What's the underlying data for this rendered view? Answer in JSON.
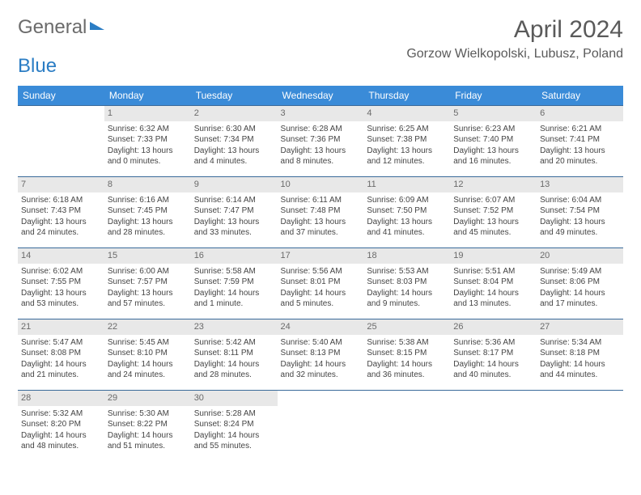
{
  "logo": {
    "general": "General",
    "blue": "Blue"
  },
  "title": "April 2024",
  "location": "Gorzow Wielkopolski, Lubusz, Poland",
  "colors": {
    "header_bg": "#3a8bd8",
    "header_text": "#ffffff",
    "border": "#3a6a9a",
    "daynum_bg": "#e8e8e8",
    "daynum_text": "#6a6a6a",
    "body_text": "#444444",
    "title_text": "#5a5a5a",
    "logo_gray": "#6b6b6b",
    "logo_blue": "#2b7dc4",
    "background": "#ffffff"
  },
  "weekdays": [
    "Sunday",
    "Monday",
    "Tuesday",
    "Wednesday",
    "Thursday",
    "Friday",
    "Saturday"
  ],
  "weeks": [
    [
      {
        "day": "",
        "sunrise": "",
        "sunset": "",
        "daylight1": "",
        "daylight2": ""
      },
      {
        "day": "1",
        "sunrise": "Sunrise: 6:32 AM",
        "sunset": "Sunset: 7:33 PM",
        "daylight1": "Daylight: 13 hours",
        "daylight2": "and 0 minutes."
      },
      {
        "day": "2",
        "sunrise": "Sunrise: 6:30 AM",
        "sunset": "Sunset: 7:34 PM",
        "daylight1": "Daylight: 13 hours",
        "daylight2": "and 4 minutes."
      },
      {
        "day": "3",
        "sunrise": "Sunrise: 6:28 AM",
        "sunset": "Sunset: 7:36 PM",
        "daylight1": "Daylight: 13 hours",
        "daylight2": "and 8 minutes."
      },
      {
        "day": "4",
        "sunrise": "Sunrise: 6:25 AM",
        "sunset": "Sunset: 7:38 PM",
        "daylight1": "Daylight: 13 hours",
        "daylight2": "and 12 minutes."
      },
      {
        "day": "5",
        "sunrise": "Sunrise: 6:23 AM",
        "sunset": "Sunset: 7:40 PM",
        "daylight1": "Daylight: 13 hours",
        "daylight2": "and 16 minutes."
      },
      {
        "day": "6",
        "sunrise": "Sunrise: 6:21 AM",
        "sunset": "Sunset: 7:41 PM",
        "daylight1": "Daylight: 13 hours",
        "daylight2": "and 20 minutes."
      }
    ],
    [
      {
        "day": "7",
        "sunrise": "Sunrise: 6:18 AM",
        "sunset": "Sunset: 7:43 PM",
        "daylight1": "Daylight: 13 hours",
        "daylight2": "and 24 minutes."
      },
      {
        "day": "8",
        "sunrise": "Sunrise: 6:16 AM",
        "sunset": "Sunset: 7:45 PM",
        "daylight1": "Daylight: 13 hours",
        "daylight2": "and 28 minutes."
      },
      {
        "day": "9",
        "sunrise": "Sunrise: 6:14 AM",
        "sunset": "Sunset: 7:47 PM",
        "daylight1": "Daylight: 13 hours",
        "daylight2": "and 33 minutes."
      },
      {
        "day": "10",
        "sunrise": "Sunrise: 6:11 AM",
        "sunset": "Sunset: 7:48 PM",
        "daylight1": "Daylight: 13 hours",
        "daylight2": "and 37 minutes."
      },
      {
        "day": "11",
        "sunrise": "Sunrise: 6:09 AM",
        "sunset": "Sunset: 7:50 PM",
        "daylight1": "Daylight: 13 hours",
        "daylight2": "and 41 minutes."
      },
      {
        "day": "12",
        "sunrise": "Sunrise: 6:07 AM",
        "sunset": "Sunset: 7:52 PM",
        "daylight1": "Daylight: 13 hours",
        "daylight2": "and 45 minutes."
      },
      {
        "day": "13",
        "sunrise": "Sunrise: 6:04 AM",
        "sunset": "Sunset: 7:54 PM",
        "daylight1": "Daylight: 13 hours",
        "daylight2": "and 49 minutes."
      }
    ],
    [
      {
        "day": "14",
        "sunrise": "Sunrise: 6:02 AM",
        "sunset": "Sunset: 7:55 PM",
        "daylight1": "Daylight: 13 hours",
        "daylight2": "and 53 minutes."
      },
      {
        "day": "15",
        "sunrise": "Sunrise: 6:00 AM",
        "sunset": "Sunset: 7:57 PM",
        "daylight1": "Daylight: 13 hours",
        "daylight2": "and 57 minutes."
      },
      {
        "day": "16",
        "sunrise": "Sunrise: 5:58 AM",
        "sunset": "Sunset: 7:59 PM",
        "daylight1": "Daylight: 14 hours",
        "daylight2": "and 1 minute."
      },
      {
        "day": "17",
        "sunrise": "Sunrise: 5:56 AM",
        "sunset": "Sunset: 8:01 PM",
        "daylight1": "Daylight: 14 hours",
        "daylight2": "and 5 minutes."
      },
      {
        "day": "18",
        "sunrise": "Sunrise: 5:53 AM",
        "sunset": "Sunset: 8:03 PM",
        "daylight1": "Daylight: 14 hours",
        "daylight2": "and 9 minutes."
      },
      {
        "day": "19",
        "sunrise": "Sunrise: 5:51 AM",
        "sunset": "Sunset: 8:04 PM",
        "daylight1": "Daylight: 14 hours",
        "daylight2": "and 13 minutes."
      },
      {
        "day": "20",
        "sunrise": "Sunrise: 5:49 AM",
        "sunset": "Sunset: 8:06 PM",
        "daylight1": "Daylight: 14 hours",
        "daylight2": "and 17 minutes."
      }
    ],
    [
      {
        "day": "21",
        "sunrise": "Sunrise: 5:47 AM",
        "sunset": "Sunset: 8:08 PM",
        "daylight1": "Daylight: 14 hours",
        "daylight2": "and 21 minutes."
      },
      {
        "day": "22",
        "sunrise": "Sunrise: 5:45 AM",
        "sunset": "Sunset: 8:10 PM",
        "daylight1": "Daylight: 14 hours",
        "daylight2": "and 24 minutes."
      },
      {
        "day": "23",
        "sunrise": "Sunrise: 5:42 AM",
        "sunset": "Sunset: 8:11 PM",
        "daylight1": "Daylight: 14 hours",
        "daylight2": "and 28 minutes."
      },
      {
        "day": "24",
        "sunrise": "Sunrise: 5:40 AM",
        "sunset": "Sunset: 8:13 PM",
        "daylight1": "Daylight: 14 hours",
        "daylight2": "and 32 minutes."
      },
      {
        "day": "25",
        "sunrise": "Sunrise: 5:38 AM",
        "sunset": "Sunset: 8:15 PM",
        "daylight1": "Daylight: 14 hours",
        "daylight2": "and 36 minutes."
      },
      {
        "day": "26",
        "sunrise": "Sunrise: 5:36 AM",
        "sunset": "Sunset: 8:17 PM",
        "daylight1": "Daylight: 14 hours",
        "daylight2": "and 40 minutes."
      },
      {
        "day": "27",
        "sunrise": "Sunrise: 5:34 AM",
        "sunset": "Sunset: 8:18 PM",
        "daylight1": "Daylight: 14 hours",
        "daylight2": "and 44 minutes."
      }
    ],
    [
      {
        "day": "28",
        "sunrise": "Sunrise: 5:32 AM",
        "sunset": "Sunset: 8:20 PM",
        "daylight1": "Daylight: 14 hours",
        "daylight2": "and 48 minutes."
      },
      {
        "day": "29",
        "sunrise": "Sunrise: 5:30 AM",
        "sunset": "Sunset: 8:22 PM",
        "daylight1": "Daylight: 14 hours",
        "daylight2": "and 51 minutes."
      },
      {
        "day": "30",
        "sunrise": "Sunrise: 5:28 AM",
        "sunset": "Sunset: 8:24 PM",
        "daylight1": "Daylight: 14 hours",
        "daylight2": "and 55 minutes."
      },
      {
        "day": "",
        "sunrise": "",
        "sunset": "",
        "daylight1": "",
        "daylight2": ""
      },
      {
        "day": "",
        "sunrise": "",
        "sunset": "",
        "daylight1": "",
        "daylight2": ""
      },
      {
        "day": "",
        "sunrise": "",
        "sunset": "",
        "daylight1": "",
        "daylight2": ""
      },
      {
        "day": "",
        "sunrise": "",
        "sunset": "",
        "daylight1": "",
        "daylight2": ""
      }
    ]
  ]
}
